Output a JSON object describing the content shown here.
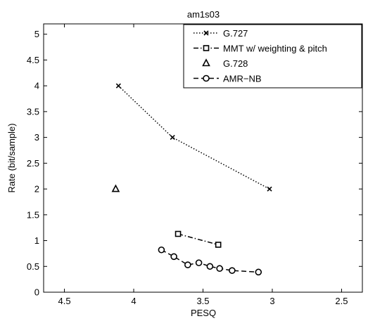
{
  "chart_data": {
    "type": "line",
    "title": "am1s03",
    "xlabel": "PESQ",
    "ylabel": "Rate (bit/sample)",
    "x_reversed": true,
    "xlim": [
      4.65,
      2.35
    ],
    "ylim": [
      0,
      5.2
    ],
    "xticks": [
      4.5,
      4,
      3.5,
      3,
      2.5
    ],
    "xtick_labels": [
      "4.5",
      "4",
      "3.5",
      "3",
      "2.5"
    ],
    "yticks": [
      0,
      0.5,
      1,
      1.5,
      2,
      2.5,
      3,
      3.5,
      4,
      4.5,
      5
    ],
    "ytick_labels": [
      "0",
      "0.5",
      "1",
      "1.5",
      "2",
      "2.5",
      "3",
      "3.5",
      "4",
      "4.5",
      "5"
    ],
    "grid": false,
    "legend_position": "top-right",
    "series": [
      {
        "name": "G.727",
        "line_style": "dotted",
        "marker": "x",
        "x": [
          4.11,
          3.72,
          3.02
        ],
        "y": [
          4.0,
          3.0,
          2.0
        ]
      },
      {
        "name": "MMT w/ weighting & pitch",
        "line_style": "dash-dot",
        "marker": "square",
        "x": [
          3.68,
          3.39
        ],
        "y": [
          1.13,
          0.92
        ]
      },
      {
        "name": "G.728",
        "line_style": "none",
        "marker": "triangle",
        "x": [
          4.13
        ],
        "y": [
          2.0
        ]
      },
      {
        "name": "AMR−NB",
        "line_style": "dashed",
        "marker": "circle",
        "x": [
          3.8,
          3.71,
          3.61,
          3.53,
          3.45,
          3.38,
          3.29,
          3.1
        ],
        "y": [
          0.82,
          0.69,
          0.53,
          0.57,
          0.5,
          0.46,
          0.42,
          0.39
        ]
      }
    ]
  }
}
